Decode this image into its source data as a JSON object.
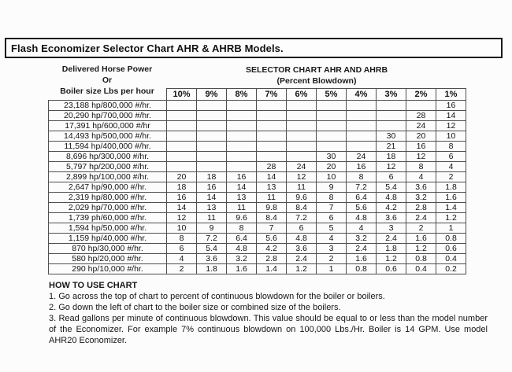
{
  "title": "Flash Economizer Selector Chart AHR & AHRB Models.",
  "left_header": {
    "line1": "Delivered Horse Power",
    "line2": "Or",
    "line3": "Boiler size Lbs per hour"
  },
  "right_header": {
    "line1": "SELECTOR CHART AHR AND AHRB",
    "line2": "(Percent Blowdown)"
  },
  "chart_data": {
    "type": "table",
    "title": "SELECTOR CHART AHR AND AHRB (Percent Blowdown)",
    "columns": [
      "10%",
      "9%",
      "8%",
      "7%",
      "6%",
      "5%",
      "4%",
      "3%",
      "2%",
      "1%"
    ],
    "rows": [
      {
        "label": "23,188 hp/800,000 #/hr.",
        "values": [
          "",
          "",
          "",
          "",
          "",
          "",
          "",
          "",
          "",
          "16"
        ]
      },
      {
        "label": "20,290 hp/700,000 #/hr.",
        "values": [
          "",
          "",
          "",
          "",
          "",
          "",
          "",
          "",
          "28",
          "14"
        ]
      },
      {
        "label": "17,391 hp/600,000 #/hr",
        "values": [
          "",
          "",
          "",
          "",
          "",
          "",
          "",
          "",
          "24",
          "12"
        ]
      },
      {
        "label": "14,493 hp/500,000 #/hr.",
        "values": [
          "",
          "",
          "",
          "",
          "",
          "",
          "",
          "30",
          "20",
          "10"
        ]
      },
      {
        "label": "11,594 hp/400,000 #/hr.",
        "values": [
          "",
          "",
          "",
          "",
          "",
          "",
          "",
          "21",
          "16",
          "8"
        ]
      },
      {
        "label": "8,696 hp/300,000 #/hr.",
        "values": [
          "",
          "",
          "",
          "",
          "",
          "30",
          "24",
          "18",
          "12",
          "6"
        ]
      },
      {
        "label": "5,797 hp/200,000 #/hr.",
        "values": [
          "",
          "",
          "",
          "28",
          "24",
          "20",
          "16",
          "12",
          "8",
          "4"
        ]
      },
      {
        "label": "2,899 hp/100,000 #/hr.",
        "values": [
          "20",
          "18",
          "16",
          "14",
          "12",
          "10",
          "8",
          "6",
          "4",
          "2"
        ]
      },
      {
        "label": "2,647 hp/90,000 #/hr.",
        "values": [
          "18",
          "16",
          "14",
          "13",
          "11",
          "9",
          "7.2",
          "5.4",
          "3.6",
          "1.8"
        ]
      },
      {
        "label": "2,319 hp/80,000 #/hr.",
        "values": [
          "16",
          "14",
          "13",
          "11",
          "9.6",
          "8",
          "6.4",
          "4.8",
          "3.2",
          "1.6"
        ]
      },
      {
        "label": "2,029 hp/70,000 #/hr.",
        "values": [
          "14",
          "13",
          "11",
          "9.8",
          "8.4",
          "7",
          "5.6",
          "4.2",
          "2.8",
          "1.4"
        ]
      },
      {
        "label": "1,739 ph/60,000 #/hr.",
        "values": [
          "12",
          "11",
          "9.6",
          "8.4",
          "7.2",
          "6",
          "4.8",
          "3.6",
          "2.4",
          "1.2"
        ]
      },
      {
        "label": "1,594 hp/50,000 #/hr.",
        "values": [
          "10",
          "9",
          "8",
          "7",
          "6",
          "5",
          "4",
          "3",
          "2",
          "1"
        ]
      },
      {
        "label": "1,159 hp/40,000 #/hr.",
        "values": [
          "8",
          "7.2",
          "6.4",
          "5.6",
          "4.8",
          "4",
          "3.2",
          "2.4",
          "1.6",
          "0.8"
        ]
      },
      {
        "label": "870 hp/30,000 #/hr.",
        "values": [
          "6",
          "5.4",
          "4.8",
          "4.2",
          "3.6",
          "3",
          "2.4",
          "1.8",
          "1.2",
          "0.6"
        ]
      },
      {
        "label": "580 hp/20,000 #/hr.",
        "values": [
          "4",
          "3.6",
          "3.2",
          "2.8",
          "2.4",
          "2",
          "1.6",
          "1.2",
          "0.8",
          "0.4"
        ]
      },
      {
        "label": "290 hp/10,000 #/hr.",
        "values": [
          "2",
          "1.8",
          "1.6",
          "1.4",
          "1.2",
          "1",
          "0.8",
          "0.6",
          "0.4",
          "0.2"
        ]
      }
    ]
  },
  "how_to_use": {
    "heading": "HOW TO USE CHART",
    "steps": [
      "1. Go across the top of chart to percent of continuous blowdown for the boiler or boilers.",
      "2. Go down the left of chart to the boiler size or combined size of the boilers.",
      "3. Read gallons per minute of continuous blowdown. This value should be equal to or less than the model number of the Economizer. For example 7% continuous blowdown on 100,000 Lbs./Hr. Boiler is 14 GPM. Use model AHR20 Economizer."
    ]
  },
  "colors": {
    "background": "#fcfcfc",
    "text": "#161616",
    "grid_border": "#4f4f4f",
    "title_border": "#1b1b1b"
  }
}
